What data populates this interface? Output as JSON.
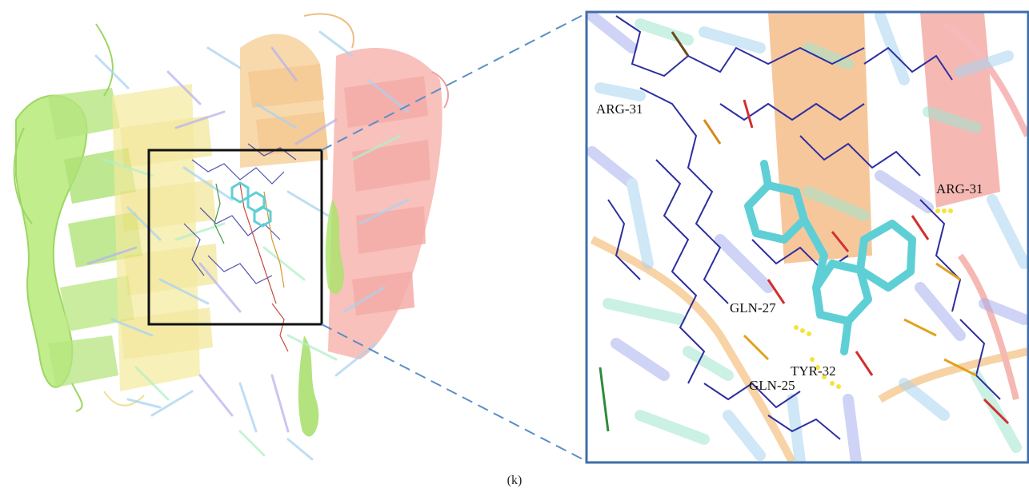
{
  "caption": "(k)",
  "colors": {
    "selection_box": "#111111",
    "zoom_frame": "#3f6ea8",
    "connector_dash": "#5b8ec7",
    "ligand": "#5fcfd6",
    "hbond": "#f2e43a"
  },
  "figure": {
    "overview": {
      "description_icon": "protein-overview-image",
      "protein_chain_colors": [
        "#a8e063",
        "#f3e38a",
        "#f2b56b",
        "#f28b8b",
        "#9fb4f0",
        "#8fd9d9",
        "#b2f0c8"
      ]
    },
    "zoom": {
      "labels": [
        {
          "id": "arg31-left",
          "text": "ARG-31"
        },
        {
          "id": "arg31-right",
          "text": "ARG-31"
        },
        {
          "id": "gln27",
          "text": "GLN-27"
        },
        {
          "id": "tyr32",
          "text": "TYR-32"
        },
        {
          "id": "gln25",
          "text": "GLN-25"
        }
      ]
    }
  }
}
